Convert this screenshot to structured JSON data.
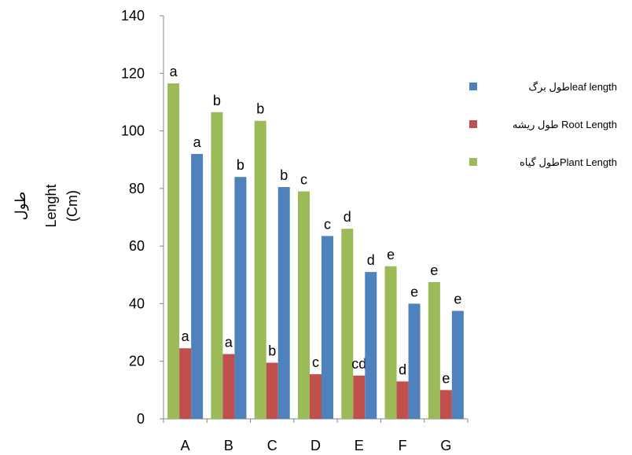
{
  "chart_data": {
    "type": "bar",
    "title": "",
    "xlabel": "",
    "ylabel_lines": [
      "طول",
      "Lenght",
      "(Cm)"
    ],
    "ylim": [
      0,
      140
    ],
    "yticks": [
      0,
      20,
      40,
      60,
      80,
      100,
      120,
      140
    ],
    "grid": false,
    "legend_position": "right",
    "categories": [
      "A",
      "B",
      "C",
      "D",
      "E",
      "F",
      "G"
    ],
    "series": [
      {
        "key": "plant",
        "color": "#9BBB59",
        "values": [
          116.5,
          106.5,
          103.5,
          79,
          66,
          53,
          47.5
        ],
        "labels": [
          "a",
          "b",
          "b",
          "c",
          "d",
          "e",
          "e"
        ]
      },
      {
        "key": "root",
        "color": "#C0504D",
        "values": [
          24.5,
          22.5,
          19.5,
          15.5,
          15,
          13,
          10
        ],
        "labels": [
          "a",
          "a",
          "b",
          "c",
          "cd",
          "d",
          "e"
        ]
      },
      {
        "key": "leaf",
        "color": "#4F81BD",
        "values": [
          92,
          84,
          80.5,
          63.5,
          51,
          40,
          37.5
        ],
        "labels": [
          "a",
          "b",
          "b",
          "c",
          "d",
          "e",
          "e"
        ]
      }
    ],
    "legend": [
      {
        "series": "leaf",
        "text": "طول برگleaf length"
      },
      {
        "series": "root",
        "text": "طول ریشه Root Length"
      },
      {
        "series": "plant",
        "text": "طول گیاهPlant Length"
      }
    ]
  }
}
